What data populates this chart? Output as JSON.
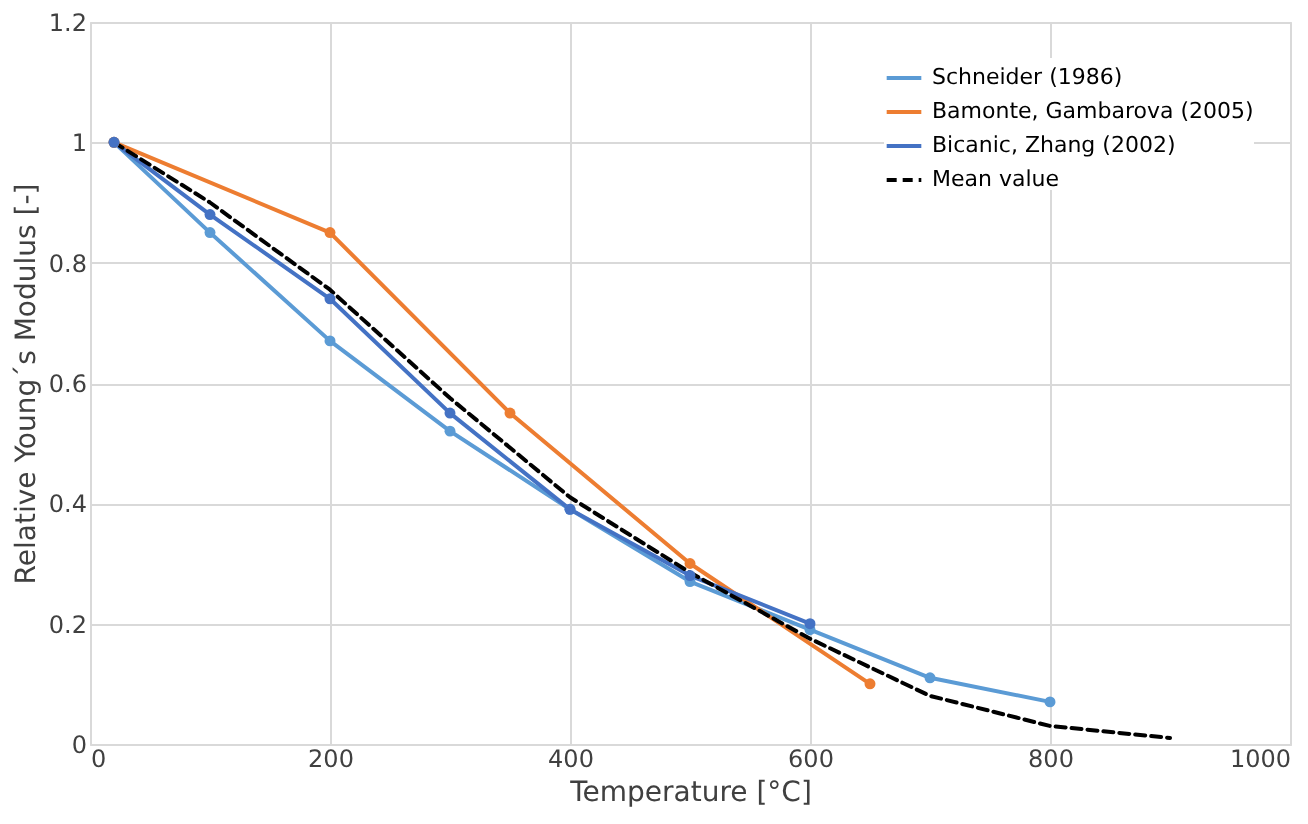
{
  "chart_data": {
    "type": "line",
    "xlabel": "Temperature [°C]",
    "ylabel": "Relative Young´s Modulus [-]",
    "xlim": [
      0,
      1000
    ],
    "xticks": [
      0,
      200,
      400,
      600,
      800,
      1000
    ],
    "ylim": [
      0,
      1.2
    ],
    "yticks": [
      0,
      0.2,
      0.4,
      0.6,
      0.8,
      1,
      1.2
    ],
    "grid": true,
    "legend": "top right",
    "series": [
      {
        "name": "Schneider (1986)",
        "color": "#5b9bd5",
        "marker": "circle",
        "line_style": "solid",
        "x": [
          20,
          100,
          200,
          300,
          400,
          500,
          600,
          700,
          800
        ],
        "values": [
          1.0,
          0.85,
          0.67,
          0.52,
          0.39,
          0.27,
          0.19,
          0.11,
          0.07
        ]
      },
      {
        "name": "Bamonte, Gambarova (2005)",
        "color": "#ed7d31",
        "marker": "circle",
        "line_style": "solid",
        "x": [
          20,
          200,
          350,
          500,
          650
        ],
        "values": [
          1.0,
          0.85,
          0.55,
          0.3,
          0.1
        ]
      },
      {
        "name": "Bicanic, Zhang (2002)",
        "color": "#4472c4",
        "marker": "circle",
        "line_style": "solid",
        "x": [
          20,
          100,
          200,
          300,
          400,
          500,
          600
        ],
        "values": [
          1.0,
          0.88,
          0.74,
          0.55,
          0.39,
          0.28,
          0.2
        ]
      },
      {
        "name": "Mean value",
        "color": "#000000",
        "marker": "none",
        "line_style": "dashed",
        "x": [
          20,
          100,
          200,
          300,
          400,
          500,
          600,
          700,
          800,
          900
        ],
        "values": [
          1.0,
          0.9,
          0.755,
          0.575,
          0.41,
          0.285,
          0.175,
          0.08,
          0.03,
          0.01
        ]
      }
    ]
  }
}
